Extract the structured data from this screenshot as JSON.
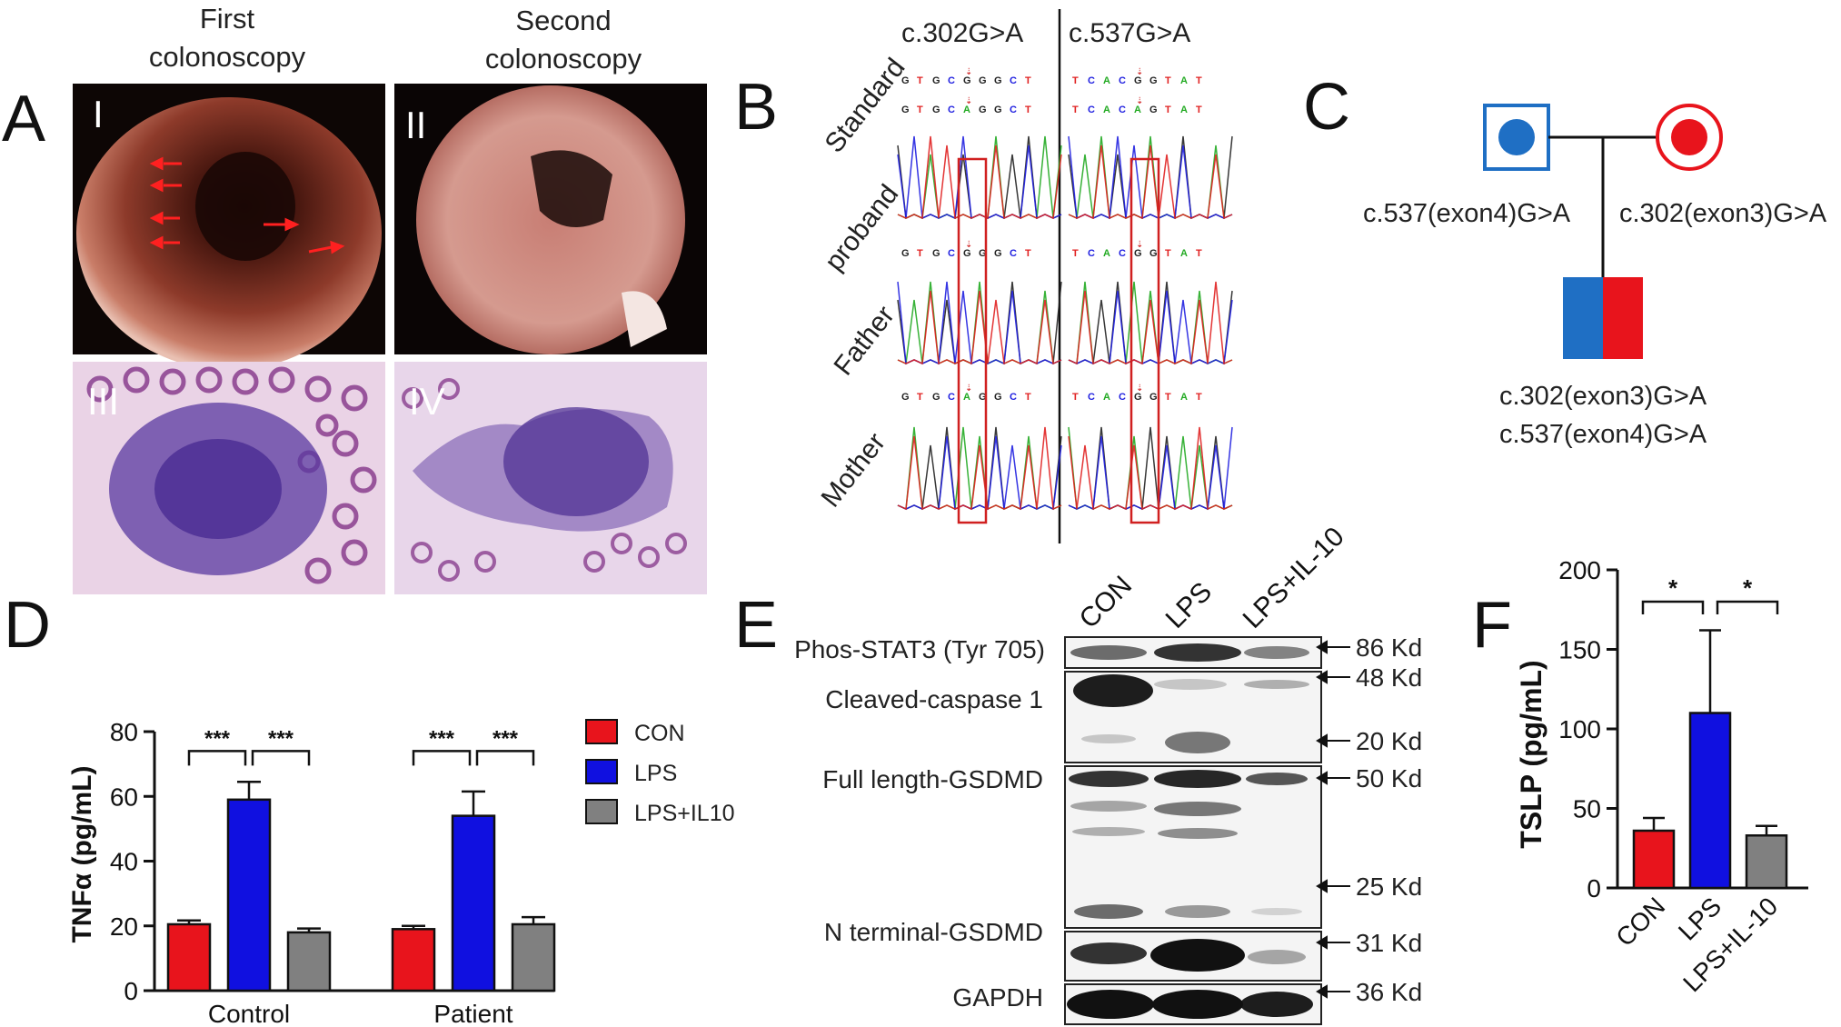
{
  "panels": {
    "A": {
      "letter": "A",
      "captions": [
        "First\ncolonoscopy",
        "Second\ncolonoscopy"
      ],
      "image_labels": [
        "I",
        "II",
        "III",
        "IV"
      ]
    },
    "B": {
      "letter": "B",
      "mutations": [
        "c.302G>A",
        "c.537G>A"
      ],
      "rows": [
        "Standard",
        "proband",
        "Father",
        "Mother"
      ],
      "seq_left_ref": "GTGCGGGCT",
      "seq_left_alt": "GTGCAGGCT",
      "seq_right_ref": "TCACGGTAT",
      "seq_right_alt": "TCACAGTAT"
    },
    "C": {
      "letter": "C",
      "father_label": "c.537(exon4)G>A",
      "mother_label": "c.302(exon3)G>A",
      "child_labels": [
        "c.302(exon3)G>A",
        "c.537(exon4)G>A"
      ],
      "colors": {
        "father": "#1f6fc4",
        "mother": "#e8141c"
      }
    },
    "D": {
      "letter": "D",
      "legend": [
        "CON",
        "LPS",
        "LPS+IL10"
      ],
      "colors": {
        "con": "#e8141c",
        "lps": "#1010e0",
        "il10": "#808080"
      }
    },
    "E": {
      "letter": "E",
      "lanes": [
        "CON",
        "LPS",
        "LPS+IL-10"
      ],
      "proteins": [
        "Phos-STAT3 (Tyr 705)",
        "Cleaved-caspase 1",
        "Full length-GSDMD",
        "N terminal-GSDMD",
        "GAPDH"
      ],
      "sizes": [
        "86 Kd",
        "48 Kd",
        "20 Kd",
        "50 Kd",
        "25 Kd",
        "31 Kd",
        "36 Kd"
      ]
    },
    "F": {
      "letter": "F"
    }
  },
  "chart_data": [
    {
      "type": "bar",
      "panel": "D",
      "categories": [
        "Control",
        "Patient"
      ],
      "series": [
        {
          "name": "CON",
          "values": [
            20.5,
            19
          ],
          "errors": [
            1.2,
            1.0
          ]
        },
        {
          "name": "LPS",
          "values": [
            59,
            54
          ],
          "errors": [
            5.5,
            7.5
          ]
        },
        {
          "name": "LPS+IL10",
          "values": [
            18,
            20.5
          ],
          "errors": [
            1.2,
            2.2
          ]
        }
      ],
      "ylabel": "TNFα (pg/mL)",
      "ylim": [
        0,
        80
      ],
      "yticks": [
        0,
        20,
        40,
        60,
        80
      ],
      "significance": [
        "***",
        "***",
        "***",
        "***"
      ],
      "legend_position": "right"
    },
    {
      "type": "bar",
      "panel": "F",
      "categories": [
        "CON",
        "LPS",
        "LPS+IL-10"
      ],
      "values": [
        36,
        110,
        33
      ],
      "errors": [
        8,
        52,
        6
      ],
      "ylabel": "TSLP (pg/mL)",
      "ylim": [
        0,
        200
      ],
      "yticks": [
        0,
        50,
        100,
        150,
        200
      ],
      "significance": [
        "*",
        "*"
      ]
    }
  ]
}
